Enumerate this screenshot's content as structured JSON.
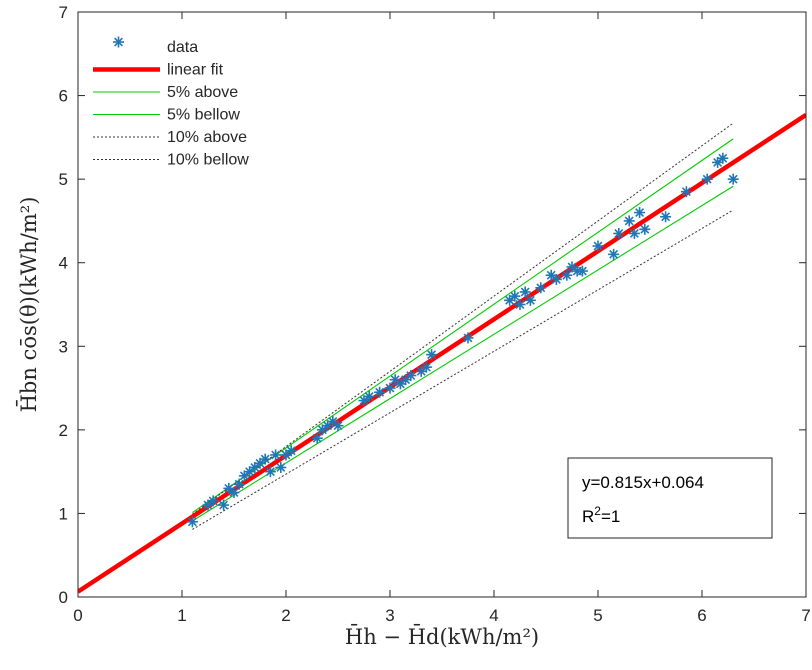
{
  "chart_data": {
    "type": "scatter",
    "title": "",
    "xlabel": "H̄h − H̄d(kWh/m²)",
    "ylabel": "H̄bn cōs(θ)(kWh/m²)",
    "xlim": [
      0,
      7
    ],
    "ylim": [
      0,
      7
    ],
    "xticks": [
      "0",
      "1",
      "2",
      "3",
      "4",
      "5",
      "6",
      "7"
    ],
    "yticks": [
      "0",
      "1",
      "2",
      "3",
      "4",
      "5",
      "6",
      "7"
    ],
    "grid": false,
    "legend_position": "top-left",
    "series": [
      {
        "name": "data",
        "kind": "scatter",
        "marker": "asterisk",
        "color": "#1f77b4",
        "x": [
          1.1,
          1.25,
          1.3,
          1.4,
          1.45,
          1.5,
          1.55,
          1.6,
          1.65,
          1.7,
          1.75,
          1.8,
          1.85,
          1.9,
          1.95,
          2.0,
          2.05,
          2.3,
          2.35,
          2.4,
          2.45,
          2.5,
          2.75,
          2.8,
          2.9,
          3.0,
          3.05,
          3.1,
          3.15,
          3.2,
          3.3,
          3.35,
          3.4,
          3.75,
          4.15,
          4.2,
          4.25,
          4.3,
          4.35,
          4.45,
          4.55,
          4.6,
          4.7,
          4.75,
          4.8,
          4.85,
          5.0,
          5.15,
          5.2,
          5.3,
          5.35,
          5.4,
          5.45,
          5.65,
          5.85,
          6.05,
          6.15,
          6.2,
          6.3
        ],
        "y": [
          0.9,
          1.1,
          1.15,
          1.1,
          1.3,
          1.25,
          1.35,
          1.45,
          1.5,
          1.55,
          1.6,
          1.65,
          1.5,
          1.7,
          1.55,
          1.7,
          1.75,
          1.9,
          2.0,
          2.05,
          2.1,
          2.05,
          2.35,
          2.4,
          2.45,
          2.5,
          2.6,
          2.55,
          2.6,
          2.65,
          2.7,
          2.75,
          2.9,
          3.1,
          3.55,
          3.6,
          3.5,
          3.65,
          3.55,
          3.7,
          3.85,
          3.8,
          3.85,
          3.95,
          3.9,
          3.9,
          4.2,
          4.1,
          4.35,
          4.5,
          4.35,
          4.6,
          4.4,
          4.55,
          4.85,
          5.0,
          5.2,
          5.25,
          5.0
        ]
      },
      {
        "name": "linear fit",
        "kind": "line",
        "slope": 0.815,
        "intercept": 0.064,
        "x_range": [
          0,
          7
        ],
        "color": "#ff0000",
        "stroke": "thick"
      },
      {
        "name": "5% above",
        "kind": "line",
        "slope": 0.86,
        "intercept": 0.064,
        "x_range": [
          1.1,
          6.3
        ],
        "color": "#00cc00",
        "stroke": "thin"
      },
      {
        "name": "5% bellow",
        "kind": "line",
        "slope": 0.77,
        "intercept": 0.064,
        "x_range": [
          1.1,
          6.3
        ],
        "color": "#00cc00",
        "stroke": "thin"
      },
      {
        "name": "10% above",
        "kind": "line",
        "slope": 0.9,
        "intercept": 0.0,
        "x_range": [
          1.1,
          6.3
        ],
        "color": "#333333",
        "stroke": "dotted"
      },
      {
        "name": "10% bellow",
        "kind": "line",
        "slope": 0.735,
        "intercept": 0.0,
        "x_range": [
          1.1,
          6.3
        ],
        "color": "#333333",
        "stroke": "dotted"
      }
    ],
    "annotation": {
      "equation": "y=0.815x+0.064",
      "r2_prefix": "R",
      "r2_sup": "2",
      "r2_suffix": "=1"
    }
  }
}
